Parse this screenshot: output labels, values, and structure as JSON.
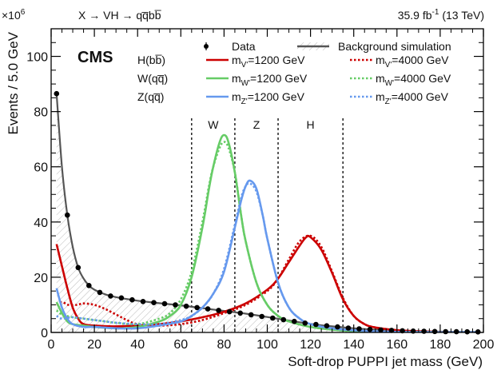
{
  "chart_data": {
    "type": "line",
    "experiment_label": "CMS",
    "header_left": "X → VH → qq̅bb̅",
    "lumi_value": "35.9 fb",
    "lumi_exp": "-1",
    "energy": "(13 TeV)",
    "multiplier_base": "×10",
    "multiplier_exp": "6",
    "xlabel": "Soft-drop PUPPI jet mass (GeV)",
    "ylabel": "Events / 5.0 GeV",
    "xlim": [
      0,
      200
    ],
    "ylim": [
      0,
      110
    ],
    "x_ticks": [
      0,
      20,
      40,
      60,
      80,
      100,
      120,
      140,
      160,
      180,
      200
    ],
    "y_ticks": [
      0,
      20,
      40,
      60,
      80,
      100
    ],
    "windows": [
      {
        "label": "W",
        "x_low": 65,
        "x_high": 85
      },
      {
        "label": "Z",
        "x_low": 85,
        "x_high": 105
      },
      {
        "label": "H",
        "x_low": 105,
        "x_high": 135
      }
    ],
    "legend": {
      "data_label": "Data",
      "bkg_label": "Background simulation",
      "row_labels": [
        "H(bb̅)",
        "W(qq̅)",
        "Z(qq̅)"
      ],
      "signal_1200": [
        {
          "main": "m",
          "sub": "V'",
          "rest": "=1200 GeV"
        },
        {
          "main": "m",
          "sub": "W'",
          "rest": "=1200 GeV"
        },
        {
          "main": "m",
          "sub": "Z'",
          "rest": "=1200 GeV"
        }
      ],
      "signal_4000": [
        {
          "main": "m",
          "sub": "V'",
          "rest": "=4000 GeV"
        },
        {
          "main": "m",
          "sub": "W'",
          "rest": "=4000 GeV"
        },
        {
          "main": "m",
          "sub": "Z'",
          "rest": "=4000 GeV"
        }
      ]
    },
    "colors": {
      "H": "#cc0000",
      "W": "#66cc66",
      "Z": "#6699ee",
      "bkg": "#555555",
      "data": "#000000"
    },
    "data_points": {
      "x": [
        2.5,
        7.5,
        12.5,
        17.5,
        22.5,
        27.5,
        32.5,
        37.5,
        42.5,
        47.5,
        52.5,
        57.5,
        62.5,
        67.5,
        72.5,
        77.5,
        82.5,
        87.5,
        92.5,
        97.5,
        102.5,
        107.5,
        112.5,
        117.5,
        122.5,
        127.5,
        132.5,
        137.5,
        142.5,
        147.5,
        152.5,
        157.5,
        162.5,
        167.5,
        172.5,
        177.5,
        182.5,
        187.5,
        192.5,
        197.5
      ],
      "y": [
        86.5,
        42.5,
        23.5,
        17,
        14.5,
        13.2,
        12.5,
        11.8,
        11.2,
        10.8,
        10.4,
        10,
        9.5,
        9,
        8.5,
        8,
        7.5,
        7,
        6.4,
        5.8,
        5.2,
        4.6,
        4,
        3.4,
        2.9,
        2.4,
        2,
        1.6,
        1.3,
        1.1,
        0.9,
        0.75,
        0.6,
        0.5,
        0.42,
        0.36,
        0.3,
        0.25,
        0.22,
        0.2
      ]
    },
    "series": [
      {
        "name": "Background simulation",
        "style": "solid",
        "color": "bkg",
        "x": [
          2.5,
          5,
          7.5,
          10,
          12.5,
          15,
          17.5,
          20,
          25,
          30,
          35,
          40,
          50,
          60,
          70,
          80,
          90,
          100,
          110,
          120,
          130,
          140,
          150,
          160,
          170,
          180,
          190,
          197.5
        ],
        "y": [
          86.5,
          60,
          42.5,
          31,
          23.5,
          19.5,
          17,
          15.5,
          13.8,
          12.8,
          12.1,
          11.5,
          10.6,
          9.8,
          8.8,
          7.8,
          6.8,
          5.6,
          4.3,
          3.1,
          2.2,
          1.5,
          1.0,
          0.6,
          0.4,
          0.3,
          0.22,
          0.2
        ]
      },
      {
        "name": "H(bb̅) m_V'=1200 GeV",
        "style": "solid",
        "color": "H",
        "x": [
          2.5,
          5,
          7.5,
          10,
          12.5,
          15,
          20,
          30,
          40,
          50,
          60,
          70,
          80,
          90,
          100,
          105,
          110,
          115,
          118,
          120,
          125,
          130,
          135,
          140,
          145,
          150,
          160,
          170,
          180,
          190,
          197.5
        ],
        "y": [
          32,
          24,
          16,
          9,
          5,
          3,
          2.5,
          2.2,
          2.5,
          3,
          4,
          5.5,
          7.5,
          10.5,
          15.5,
          19.5,
          25.5,
          31.5,
          34.5,
          34.5,
          30,
          21.5,
          12,
          6,
          3,
          1.8,
          0.8,
          0.4,
          0.2,
          0.1,
          0.1
        ]
      },
      {
        "name": "H(bb̅) m_V'=4000 GeV",
        "style": "dotted",
        "color": "H",
        "x": [
          2.5,
          5,
          8,
          12,
          15,
          20,
          25,
          30,
          35,
          40,
          50,
          60,
          70,
          80,
          90,
          100,
          105,
          110,
          115,
          120,
          125,
          130,
          135,
          140,
          145,
          150,
          160,
          170,
          180,
          190,
          197.5
        ],
        "y": [
          10,
          11,
          10,
          10,
          10.5,
          10,
          8.5,
          6.5,
          4.5,
          3,
          2.5,
          3,
          4.5,
          7,
          10,
          15,
          19.5,
          26.5,
          33,
          35,
          31,
          22,
          12.5,
          6,
          3,
          1.8,
          0.8,
          0.4,
          0.2,
          0.1,
          0.1
        ]
      },
      {
        "name": "W(qq̅) m_W'=1200 GeV",
        "style": "solid",
        "color": "W",
        "x": [
          2.5,
          5,
          7.5,
          10,
          15,
          20,
          30,
          40,
          50,
          55,
          60,
          65,
          70,
          73,
          75,
          78,
          80,
          82,
          85,
          88,
          90,
          95,
          100,
          105,
          110,
          120,
          130,
          140,
          160,
          180,
          197.5
        ],
        "y": [
          11,
          7,
          4,
          3,
          2.5,
          2,
          1.5,
          2,
          4,
          6,
          10,
          20,
          38,
          52,
          60,
          69,
          71.5,
          69,
          58,
          42,
          33,
          18,
          10,
          6,
          4,
          2,
          1,
          0.5,
          0.2,
          0.1,
          0.1
        ]
      },
      {
        "name": "W(qq̅) m_W'=4000 GeV",
        "style": "dotted",
        "color": "W",
        "x": [
          2.5,
          5,
          10,
          15,
          20,
          25,
          30,
          40,
          50,
          55,
          60,
          65,
          70,
          73,
          75,
          78,
          80,
          82,
          85,
          88,
          90,
          95,
          100,
          105,
          110,
          120,
          130,
          140,
          160,
          180,
          197.5
        ],
        "y": [
          8,
          6.5,
          5.5,
          5,
          4.5,
          4,
          3.5,
          3,
          5,
          7,
          12,
          22,
          40,
          53,
          60,
          67,
          69,
          67,
          58,
          42,
          33,
          18,
          10,
          6,
          4,
          2,
          1,
          0.5,
          0.2,
          0.1,
          0.1
        ]
      },
      {
        "name": "Z(qq̅) m_Z'=1200 GeV",
        "style": "solid",
        "color": "Z",
        "x": [
          2.5,
          5,
          7.5,
          10,
          15,
          20,
          30,
          40,
          50,
          60,
          65,
          70,
          75,
          80,
          85,
          88,
          90,
          92,
          95,
          98,
          100,
          105,
          110,
          115,
          120,
          130,
          140,
          150,
          160,
          180,
          197.5
        ],
        "y": [
          16,
          9,
          5,
          3,
          2,
          2,
          1.5,
          1.5,
          2.5,
          4,
          6,
          9,
          14,
          22,
          38,
          48,
          53,
          55,
          52,
          42,
          34,
          18,
          9,
          5,
          3,
          1.5,
          0.8,
          0.4,
          0.2,
          0.1,
          0.1
        ]
      },
      {
        "name": "Z(qq̅) m_Z'=4000 GeV",
        "style": "dotted",
        "color": "Z",
        "x": [
          2.5,
          5,
          10,
          15,
          20,
          25,
          30,
          40,
          50,
          60,
          65,
          70,
          75,
          80,
          85,
          88,
          90,
          92,
          95,
          98,
          100,
          105,
          110,
          115,
          120,
          130,
          140,
          150,
          160,
          180,
          197.5
        ],
        "y": [
          6,
          5,
          5.5,
          5,
          4.5,
          4,
          3.5,
          3,
          3,
          4.5,
          6,
          9,
          14,
          23,
          39,
          49,
          53,
          54,
          51,
          42,
          34,
          18,
          9,
          5,
          3,
          1.5,
          0.8,
          0.4,
          0.2,
          0.1,
          0.1
        ]
      }
    ]
  }
}
